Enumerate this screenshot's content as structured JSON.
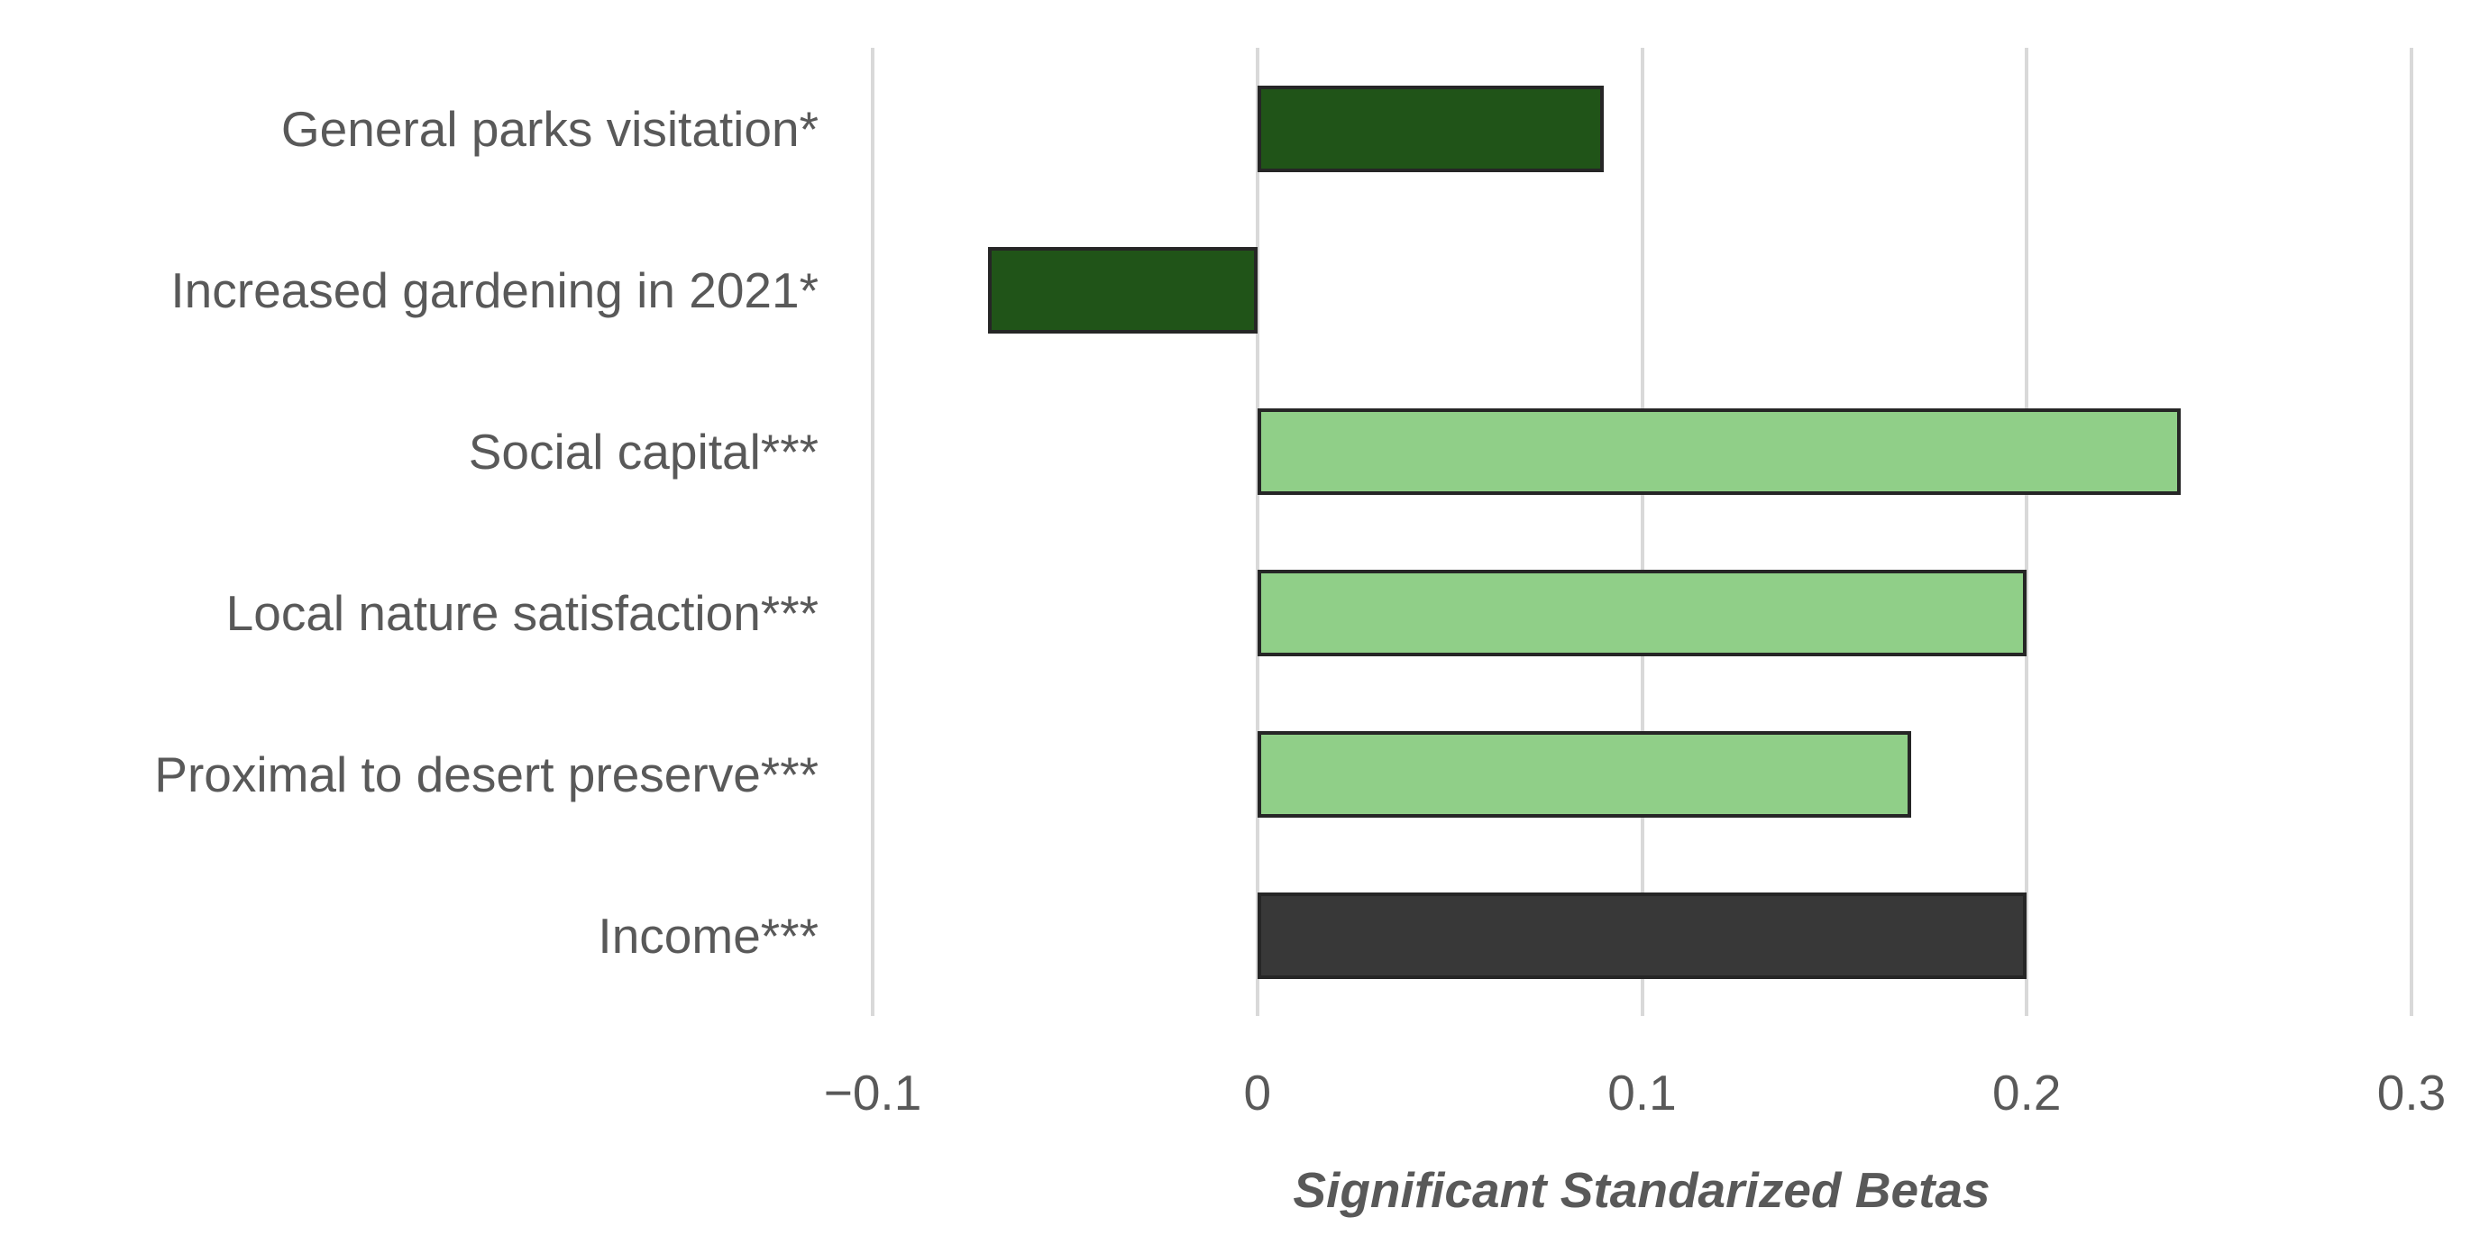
{
  "chart_data": {
    "type": "bar",
    "orientation": "horizontal",
    "title": "",
    "xlabel": "Significant Standarized Betas",
    "ylabel": "",
    "categories": [
      "General parks visitation*",
      "Increased gardening in 2021*",
      "Social capital***",
      "Local nature satisfaction***",
      "Proximal to desert preserve***",
      "Income***"
    ],
    "values": [
      0.09,
      -0.07,
      0.24,
      0.2,
      0.17,
      0.2
    ],
    "bar_colors": [
      "#205418",
      "#205418",
      "#90cf88",
      "#90cf88",
      "#90cf88",
      "#383838"
    ],
    "bar_border_color": "#262626",
    "axis": {
      "min": -0.1,
      "max": 0.3,
      "tick_values": [
        -0.1,
        0,
        0.1,
        0.2,
        0.3
      ],
      "tick_labels": [
        "−0.1",
        "0",
        "0.1",
        "0.2",
        "0.3"
      ]
    },
    "grid": true,
    "legend": false,
    "colors": {
      "dark_green": "#205418",
      "light_green": "#90cf88",
      "dark_gray": "#383838",
      "gridline": "#d9d9d9",
      "text": "#595959",
      "background": "#ffffff"
    }
  }
}
